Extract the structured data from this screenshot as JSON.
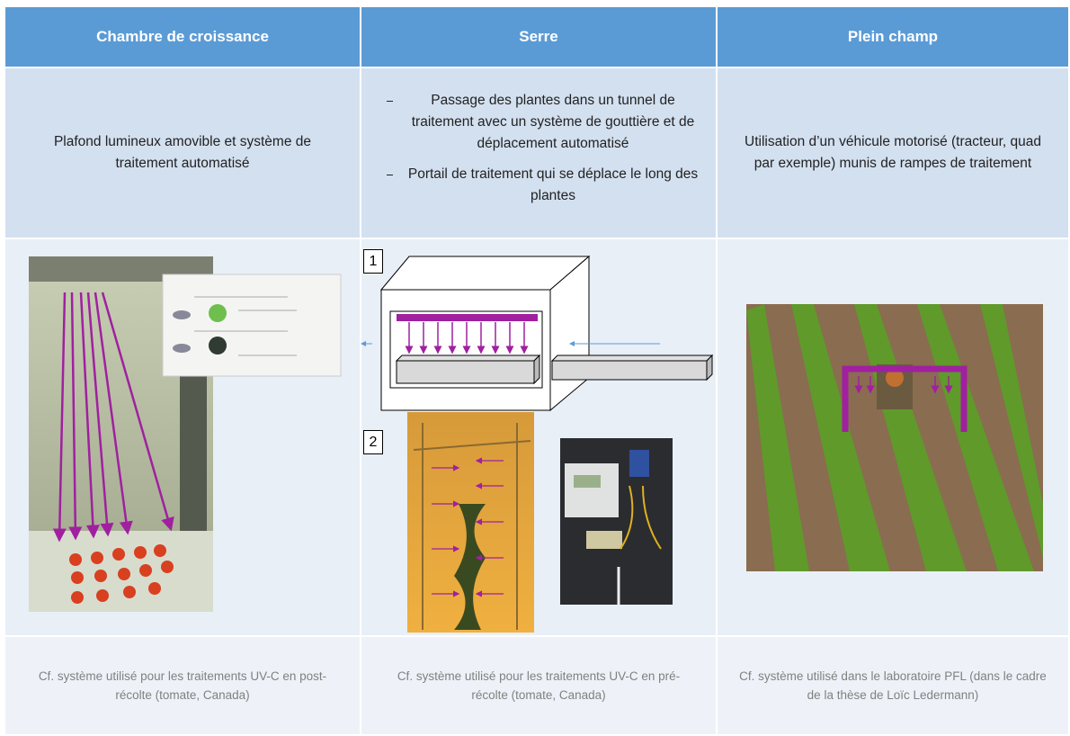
{
  "table": {
    "headers": [
      "Chambre de croissance",
      "Serre",
      "Plein champ"
    ],
    "descriptions": [
      "Plafond lumineux amovible et système de traitement automatisé",
      [
        "Passage des plantes dans un tunnel de traitement avec un système de gouttière et de déplacement automatisé",
        "Portail de traitement qui se déplace le long des plantes"
      ],
      "Utilisation d’un véhicule motorisé (tracteur, quad par exemple) munis de rampes de traitement"
    ],
    "diagram_labels": [
      "1",
      "2"
    ],
    "captions": [
      "Cf. système utilisé pour les traitements UV-C en post-récolte (tomate, Canada)",
      "Cf. système utilisé pour les traitements UV-C en pré-récolte (tomate, Canada)",
      "Cf. système utilisé dans le laboratoire PFL (dans le cadre de la thèse de Loïc Ledermann)"
    ]
  }
}
